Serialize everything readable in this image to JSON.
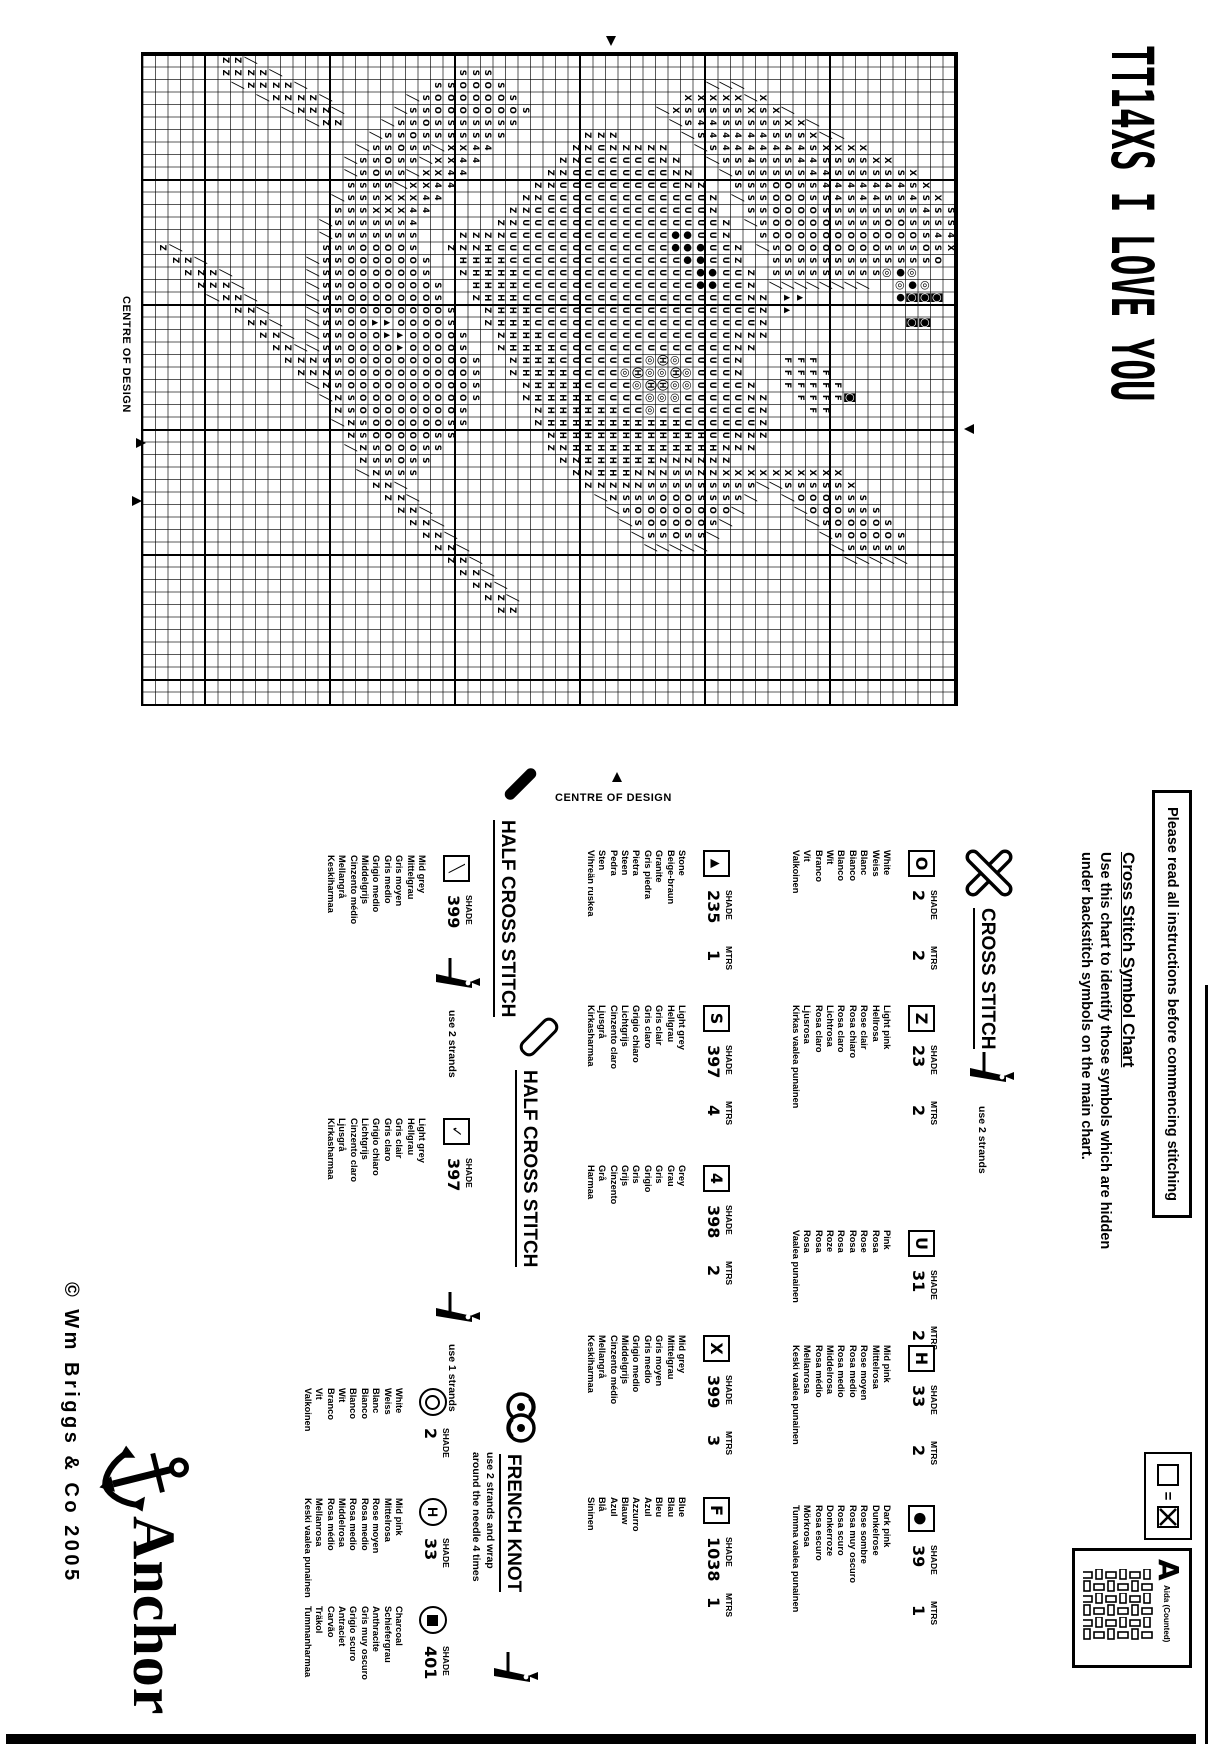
{
  "title": "TT14XS I LOVE YOU",
  "notice": "Please read all instructions before commencing stitching",
  "symbol_chart": {
    "heading": "Cross Stitch Symbol Chart",
    "line1": "Use this chart to identify those symbols which are hidden",
    "line2": "under backstitch symbols on the main chart."
  },
  "headers": {
    "shade": "SHADE",
    "mtrs": "MTRS"
  },
  "sections": {
    "cross_stitch": {
      "label": "CROSS STITCH",
      "use": "use 2 strands"
    },
    "half_cross_1": {
      "label": "HALF CROSS STITCH",
      "use": "use 2 strands"
    },
    "half_cross_2": {
      "label": "HALF CROSS STITCH",
      "use": "use 1 strands"
    },
    "french_knot": {
      "label": "FRENCH KNOT",
      "use_line1": "use 2 strands and wrap",
      "use_line2": "around the needle 4 times"
    }
  },
  "cross_stitch_entries": [
    {
      "symbol": "O",
      "symbol_name": "letter-o",
      "shade": "2",
      "mtrs": "2",
      "colors": [
        "White",
        "Weiss",
        "Blanc",
        "Bianco",
        "Blanco",
        "Wit",
        "Branco",
        "Vit",
        "Valkoinen"
      ]
    },
    {
      "symbol": "Z",
      "symbol_name": "letter-z",
      "shade": "23",
      "mtrs": "2",
      "colors": [
        "Light pink",
        "Hellrosa",
        "Rose clair",
        "Rosa chiaro",
        "Rosa claro",
        "Lichtrosa",
        "Rosa claro",
        "Ljusrosa",
        "Kirkas vaalea punainen"
      ]
    },
    {
      "symbol": "U",
      "symbol_name": "letter-u",
      "shade": "31",
      "mtrs": "2",
      "colors": [
        "Pink",
        "Rosa",
        "Rose",
        "Rosa",
        "Rosa",
        "Roze",
        "Rosa",
        "Rosa",
        "Vaalea punainen"
      ]
    },
    {
      "symbol": "H",
      "symbol_name": "letter-h",
      "shade": "33",
      "mtrs": "2",
      "colors": [
        "Mid pink",
        "Mittelrosa",
        "Rose moyen",
        "Rosa medio",
        "Rosa medio",
        "Middelrosa",
        "Rosa médio",
        "Mellanrosa",
        "Keski vaalea punainen"
      ]
    },
    {
      "symbol": "●",
      "symbol_name": "filled-dot",
      "shade": "39",
      "mtrs": "1",
      "colors": [
        "Dark pink",
        "Dunkelrose",
        "Rose sombre",
        "Rosa muy oscuro",
        "Rosa scuro",
        "Donkerroze",
        "Rosa escuro",
        "Mörkrosa",
        "Tumma vaalea punainen"
      ]
    },
    {
      "symbol": "▲",
      "symbol_name": "filled-triangle",
      "shade": "235",
      "mtrs": "1",
      "colors": [
        "Stone",
        "Beige-braun",
        "Granite",
        "Gris piedra",
        "Pietra",
        "Steen",
        "Pedra",
        "Sten",
        "Vihreän ruskea"
      ]
    },
    {
      "symbol": "S",
      "symbol_name": "letter-s",
      "shade": "397",
      "mtrs": "4",
      "colors": [
        "Light grey",
        "Hellgrau",
        "Gris clair",
        "Gris claro",
        "Grigio chiaro",
        "Lichtgrijs",
        "Cinzento claro",
        "Ljusgrå",
        "Kirkasharmaa"
      ]
    },
    {
      "symbol": "4",
      "symbol_name": "digit-4",
      "shade": "398",
      "mtrs": "2",
      "colors": [
        "Grey",
        "Grau",
        "Gris",
        "Grigio",
        "Gris",
        "Grijs",
        "Cinzento",
        "Grå",
        "Harmaa"
      ]
    },
    {
      "symbol": "X",
      "symbol_name": "letter-x",
      "shade": "399",
      "mtrs": "3",
      "colors": [
        "Mid grey",
        "Mittelgrau",
        "Gris moyen",
        "Gris medio",
        "Grigio medio",
        "Middelgrijs",
        "Cinzento médio",
        "Mellangrå",
        "Keskiharmaa"
      ]
    },
    {
      "symbol": "F",
      "symbol_name": "letter-f",
      "shade": "1038",
      "mtrs": "1",
      "colors": [
        "Blue",
        "Blau",
        "Bleu",
        "Azul",
        "Azzurro",
        "Blauw",
        "Azul",
        "Blå",
        "Sininen"
      ]
    }
  ],
  "half_cross_entries": [
    {
      "symbol": "╲",
      "symbol_name": "half-stitch-backslash",
      "shade": "399",
      "colors": [
        "Mid grey",
        "Mittelgrau",
        "Gris moyen",
        "Gris medio",
        "Grigio medio",
        "Middelgrijs",
        "Cinzento médio",
        "Mellangrå",
        "Keskiharmaa"
      ]
    },
    {
      "symbol": "✓",
      "symbol_name": "half-stitch-check",
      "shade": "397",
      "colors": [
        "Light grey",
        "Hellgrau",
        "Gris clair",
        "Gris claro",
        "Grigio chiaro",
        "Lichtgrijs",
        "Cinzento claro",
        "Ljusgrå",
        "Kirkasharmaa"
      ]
    }
  ],
  "french_knot_entries": [
    {
      "symbol_name": "double-circle",
      "variant": "circle",
      "shade": "2",
      "colors": [
        "White",
        "Weiss",
        "Blanc",
        "Bianco",
        "Blanco",
        "Wit",
        "Branco",
        "Vit",
        "Valkoinen"
      ]
    },
    {
      "symbol_name": "circled-h",
      "variant": "H",
      "shade": "33",
      "colors": [
        "Mid pink",
        "Mittelrosa",
        "Rose moyen",
        "Rosa medio",
        "Rosa medio",
        "Middelrosa",
        "Rosa médio",
        "Mellanrosa",
        "Keski vaalea punainen"
      ]
    },
    {
      "symbol_name": "circled-filled-square",
      "variant": "square",
      "shade": "401",
      "colors": [
        "Charcoal",
        "Schiefergrau",
        "Anthracite",
        "Gris muy oscuro",
        "Grigio scuro",
        "Antraciet",
        "Carvão",
        "Träkol",
        "Tummanharmaa"
      ]
    }
  ],
  "centre_of_design": "CENTRE OF DESIGN",
  "fabric": {
    "letter": "A",
    "label": "Aida (Counted)"
  },
  "stitch_equation": {
    "equals": "="
  },
  "logo": {
    "brand": "Anchor",
    "copyright": "© Wm Briggs & Co 2005"
  },
  "colors": {
    "ink": "#000000",
    "paper": "#ffffff"
  },
  "chart_grid": {
    "cols": 52,
    "rows": 65,
    "symbol_map": {
      "O": "white-2",
      "Z": "light-pink-23",
      "U": "pink-31",
      "H": "mid-pink-33",
      "D": "dark-pink-39",
      "A": "stone-235",
      "S": "light-grey-397",
      "4": "grey-398",
      "X": "mid-grey-399",
      "F": "blue-1038",
      "v": "half-cross-stitch",
      "W": "french-knot-white-2",
      "P": "french-knot-pink-33",
      "B": "french-knot-charcoal-401"
    },
    "rows_data": [
      "............SS4X....................................",
      "...........XSS4SO..B................................",
      "..........XS4SSOS.WB.B..............................",
      ".........XS4SSOSSWDB.B..............................",
      ".........S4SSOOSSDWD..................SSv...........",
      "........XS4SSOOSSW...................SOSv...........",
      "........XS44SSOOSS..................SOOSv...........",
      ".......XSS44SSOOSSv................SSOOSv...........",
      ".......XSS4SSSOOSSv........B......XSSOOSv...........",
      "......vXSS44SSOOSSv.......FF.....XSSOOSv............",
      "......vXS44SSOOOSSv......FFFF....XSOOSv.............",
      ".....vXS44SSOOOOSSv.....FFFFF....XSOOv..............",
      ".....XS44SSOOOOOSSvA....FFFF.....XSOv...............",
      "....vXS4SSOOOOOOSSvAA...FFF......XSv................",
      "....XSS4SSOOOOOSSSv..............Xv.................",
      "...XSS44SSSSSSSv...ZZZZ....ZZZZ..Xv.................",
      "...vXS444SSSSv...ZZZUUZZ..ZZUUZZ.XSv................",
      "..vXSS44SSSv...ZZUUUUUZZZZUUUUZZ.XSSv...............",
      "..vXSS44Sv...ZZUUUUUUUUUUUUUUUUZZXSSOv..............",
      "..vXS44Sv..ZZUUUUDDUUUUUUUUUUUUHZZSSOSv.............",
      "...XS4Sv..ZUUUUDDDDUUUUUUUUUUUHHZZSSOOSv............",
      "...XSSv..ZZUUUDDDUUUUUUUUWWUUUHHZSSOOOSv............",
      "....Xv..ZZUUUUDDUUUUUUUUWPWWUHHHZSSOOOOv............",
      "....v..ZZUUUUUUUUUUUUUUUPWPWUHHHZZSOOOSv............",
      ".......ZUUUUUUUUUUUUUUUUWWPWWHHHHZSSOOSv............",
      ".......ZUUUUUUUUUUUUUUUUUPWUUHHHHZZSOSv.............",
      ".......ZUUUUUUUUUUUUUUUUUWUUUHHHHHZSSv..............",
      "......ZZUUUUUUUUUUUUUUUUUUUUHHHHHHZZv...............",
      "......ZUUUUUUUUUUUUUUUUUUUUUHHHHHHZv................",
      "......ZZUUUUUUUUUUUUUUUUUUUHHHHHHZZ.................",
      ".......ZZUUUUUUUUUUUUUUUUUHHHHHHZZ..................",
      "........ZZUUUUUUUUUUUUUUUHHHHHHZZ...................",
      ".........ZZUUUUUUUUUUUUHHHHHHHZZ....................",
      "..........ZZUUUUUUUUUUHHHHHHZZ......................",
      "....S......ZZUUUUUUUHHHHHHZZ........................",
      "...SOS......ZZUUUHHHHHHHZZ.................vZ.......",
      "..SOOSS......ZZUHHHHHHZZ..................vZZ.......",
      ".SOOOSS4......ZHHHHHZZ...................vZZ........",
      ".SOOOSS44.....ZZHHHZ....SSSS............vZZ.........",
      ".SOOOSSX44....ZZHZ....SSOOOOSS.........vZZ..........",
      "..SOOSSXX44....Z....SSOOOOOOOSS.......vZZ...........",
      "..SOOSSvXX44......SSOOOOOOOOOOSS.....vZZ............",
      "...SSOSSvXX44...SSOOOOOOOOOOOOOSS...vZZ.............",
      "...vSSOSSvXX44SSOOOOOOOOOOOOOOOOSS.vZZ..............",
      "....vSSOSSvXXSSOOOOOOOAAOOOOOOOOOSvZZ...............",
      ".....vSSOSSXXSSOOOOOOAAOOOOOOOOOSSZZ................",
      "......vSSOSSXSSOOOOOOAOOOOOOOOOSSZZ.................",
      ".......vSSSSSSSOOOOOOOOOOOOOOSSZZv..................",
      "........vvSSSSSSOOOOOOOOOOOSSZZv....................",
      "....vZ.....vSSSSSSSSSSSSSSSZZv......................",
      "...vZZ.......vvSSSSSSSSSSZZv........................",
      "...ZZv..........vvvvvvvvZZv.........................",
      "..vZZ..................vZZ..........................",
      "..ZZv.................vZZ...........................",
      ".vZZ.................vZZ............................",
      ".ZZv................vZZ.............................",
      "vZZ................vZZ..............................",
      "ZZv...............vZZ...............................",
      "ZZ...............vZZ................................",
      ".................ZZv................................",
      "................vZZ.................................",
      "................ZZ..................................",
      "...............vZ...................................",
      "...............Z....................................",
      "...................................................."
    ]
  }
}
